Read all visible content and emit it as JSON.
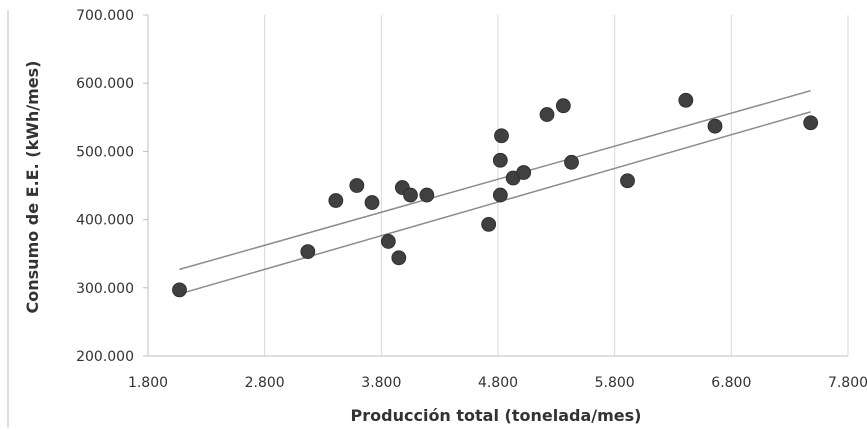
{
  "chart_data": {
    "type": "scatter",
    "title": "",
    "xlabel": "Producción total (tonelada/mes)",
    "ylabel": "Consumo de E.E. (kWh/mes)",
    "xlim": [
      1800,
      7800
    ],
    "ylim": [
      200000,
      700000
    ],
    "x_tick_labels": [
      "1.800",
      "2.800",
      "3.800",
      "4.800",
      "5.800",
      "6.800",
      "7.800"
    ],
    "y_tick_labels": [
      "200.000",
      "300.000",
      "400.000",
      "500.000",
      "600.000",
      "700.000"
    ],
    "grid": "vertical",
    "legend": "none",
    "points": [
      {
        "x": 2070,
        "y": 297000
      },
      {
        "x": 3170,
        "y": 353000
      },
      {
        "x": 3410,
        "y": 428000
      },
      {
        "x": 3590,
        "y": 450000
      },
      {
        "x": 3720,
        "y": 425000
      },
      {
        "x": 3860,
        "y": 368000
      },
      {
        "x": 3950,
        "y": 344000
      },
      {
        "x": 3980,
        "y": 447000
      },
      {
        "x": 4050,
        "y": 436000
      },
      {
        "x": 4190,
        "y": 436000
      },
      {
        "x": 4720,
        "y": 393000
      },
      {
        "x": 4820,
        "y": 487000
      },
      {
        "x": 4820,
        "y": 436000
      },
      {
        "x": 4830,
        "y": 523000
      },
      {
        "x": 4930,
        "y": 461000
      },
      {
        "x": 5020,
        "y": 469000
      },
      {
        "x": 5220,
        "y": 554000
      },
      {
        "x": 5360,
        "y": 567000
      },
      {
        "x": 5430,
        "y": 484000
      },
      {
        "x": 5910,
        "y": 457000
      },
      {
        "x": 6410,
        "y": 575000
      },
      {
        "x": 6660,
        "y": 537000
      },
      {
        "x": 7480,
        "y": 542000
      }
    ],
    "lines": [
      {
        "x": [
          2070,
          7480
        ],
        "y": [
          327000,
          589000
        ]
      },
      {
        "x": [
          2070,
          7480
        ],
        "y": [
          291000,
          558000
        ]
      }
    ],
    "colors": {
      "point": "#404040",
      "line": "#8c8c8c",
      "grid": "#d9d9d9",
      "axis": "#bfbfbf"
    }
  }
}
